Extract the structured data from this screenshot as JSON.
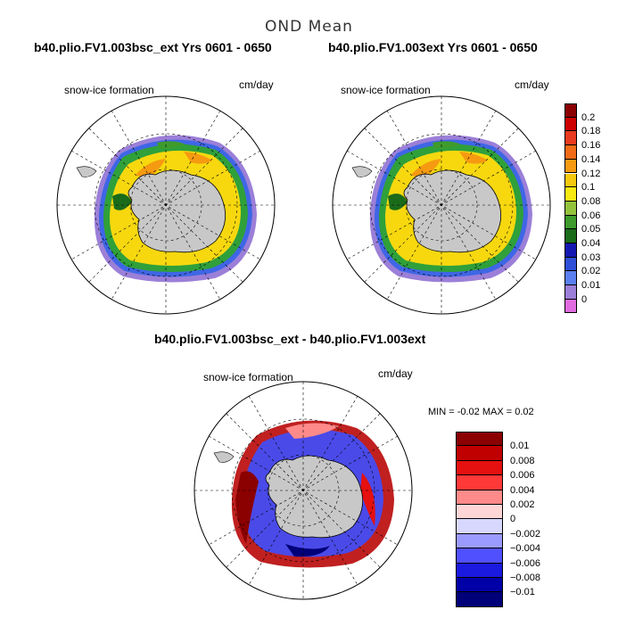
{
  "figure": {
    "title": "OND Mean",
    "panels": [
      {
        "title": "b40.plio.FV1.003bsc_ext  Yrs 0601 - 0650",
        "variable": "snow-ice formation",
        "units": "cm/day"
      },
      {
        "title": "b40.plio.FV1.003ext  Yrs 0601 - 0650",
        "variable": "snow-ice formation",
        "units": "cm/day"
      },
      {
        "title": "b40.plio.FV1.003bsc_ext - b40.plio.FV1.003ext",
        "variable": "snow-ice formation",
        "units": "cm/day",
        "stats": "MIN =   -0.02  MAX =    0.02"
      }
    ],
    "colorbar_top": {
      "labels": [
        "0.2",
        "0.18",
        "0.16",
        "0.14",
        "0.12",
        "0.1",
        "0.08",
        "0.06",
        "0.05",
        "0.04",
        "0.03",
        "0.02",
        "0.01",
        "0"
      ],
      "colors": [
        "#8b0000",
        "#cc0000",
        "#e83a1e",
        "#f26b16",
        "#f59a11",
        "#f5c80f",
        "#f7ea12",
        "#93c23d",
        "#3e9b2c",
        "#1a6b1a",
        "#1418b0",
        "#2f4fd6",
        "#5a7ff0",
        "#9b7fd8",
        "#e06ce0"
      ]
    },
    "colorbar_diff": {
      "labels": [
        "0.01",
        "0.008",
        "0.006",
        "0.004",
        "0.002",
        "0",
        "−0.002",
        "−0.004",
        "−0.006",
        "−0.008",
        "−0.01"
      ],
      "colors": [
        "#8b0000",
        "#c00000",
        "#e51010",
        "#ff3838",
        "#ff8a8a",
        "#ffd6d6",
        "#d8d8ff",
        "#9a9aff",
        "#5050ff",
        "#1a1ae0",
        "#0000a8",
        "#000078"
      ]
    }
  }
}
